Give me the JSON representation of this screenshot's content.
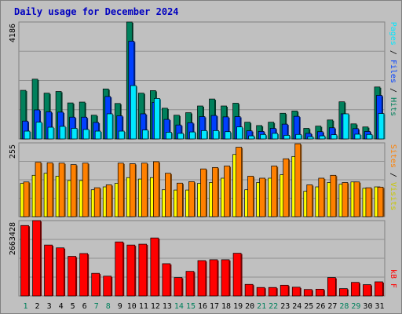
{
  "colors": {
    "pages": "#00e8ff",
    "files": "#0040ff",
    "hits": "#00805c",
    "visits": "#ffff00",
    "sites": "#ff8000",
    "kbytes": "#ff0000",
    "weekday_text": "#000000",
    "weekend_text": "#00805c",
    "title": "#0000c0"
  },
  "chart_data": [
    {
      "type": "bar",
      "title": "Daily usage for December 2024",
      "categories": [
        "1",
        "2",
        "3",
        "4",
        "5",
        "6",
        "7",
        "8",
        "9",
        "10",
        "11",
        "12",
        "13",
        "14",
        "15",
        "16",
        "17",
        "18",
        "19",
        "20",
        "21",
        "22",
        "23",
        "24",
        "25",
        "26",
        "27",
        "28",
        "29",
        "30",
        "31"
      ],
      "weekend_days": [
        "1",
        "7",
        "8",
        "14",
        "15",
        "21",
        "22",
        "28",
        "29"
      ],
      "ymax_label": "4186",
      "ylim": [
        0,
        4186
      ],
      "series": [
        {
          "name": "Hits",
          "values": [
            1740,
            2140,
            1640,
            1700,
            1290,
            1320,
            850,
            1790,
            1270,
            4186,
            1640,
            1730,
            1100,
            850,
            940,
            1180,
            1430,
            1180,
            1280,
            600,
            480,
            600,
            920,
            1000,
            380,
            460,
            680,
            1330,
            540,
            430,
            1860
          ]
        },
        {
          "name": "Files",
          "values": [
            640,
            1040,
            970,
            960,
            780,
            780,
            590,
            1520,
            830,
            3500,
            900,
            1310,
            700,
            500,
            580,
            800,
            840,
            790,
            800,
            290,
            270,
            380,
            530,
            810,
            200,
            260,
            400,
            900,
            370,
            270,
            1560
          ]
        },
        {
          "name": "Pages",
          "values": [
            280,
            600,
            420,
            450,
            380,
            340,
            280,
            900,
            280,
            1910,
            320,
            1450,
            240,
            200,
            250,
            300,
            300,
            260,
            430,
            110,
            160,
            200,
            130,
            160,
            80,
            110,
            150,
            900,
            170,
            160,
            910
          ]
        }
      ],
      "legend": [
        "Pages",
        "Files",
        "Hits"
      ]
    },
    {
      "type": "bar",
      "categories": [
        "1",
        "2",
        "3",
        "4",
        "5",
        "6",
        "7",
        "8",
        "9",
        "10",
        "11",
        "12",
        "13",
        "14",
        "15",
        "16",
        "17",
        "18",
        "19",
        "20",
        "21",
        "22",
        "23",
        "24",
        "25",
        "26",
        "27",
        "28",
        "29",
        "30",
        "31"
      ],
      "ymax_label": "255",
      "ylim": [
        0,
        255
      ],
      "series": [
        {
          "name": "Visits",
          "values": [
            115,
            143,
            150,
            140,
            125,
            125,
            93,
            103,
            115,
            135,
            130,
            135,
            93,
            92,
            92,
            115,
            118,
            133,
            215,
            93,
            118,
            133,
            145,
            208,
            88,
            103,
            118,
            112,
            120,
            98,
            103
          ]
        },
        {
          "name": "Sites",
          "values": [
            120,
            188,
            186,
            185,
            180,
            185,
            100,
            110,
            185,
            183,
            185,
            190,
            150,
            116,
            121,
            165,
            170,
            175,
            240,
            140,
            133,
            175,
            200,
            252,
            110,
            133,
            143,
            118,
            120,
            100,
            102
          ]
        }
      ],
      "legend": [
        "Sites",
        "Visits"
      ]
    },
    {
      "type": "bar",
      "categories": [
        "1",
        "2",
        "3",
        "4",
        "5",
        "6",
        "7",
        "8",
        "9",
        "10",
        "11",
        "12",
        "13",
        "14",
        "15",
        "16",
        "17",
        "18",
        "19",
        "20",
        "21",
        "22",
        "23",
        "24",
        "25",
        "26",
        "27",
        "28",
        "29",
        "30",
        "31"
      ],
      "ymax_label": "2663428",
      "ylim": [
        0,
        2663428
      ],
      "series": [
        {
          "name": "kB F",
          "values": [
            2490000,
            2663428,
            1800000,
            1700000,
            1400000,
            1500000,
            800000,
            700000,
            1910000,
            1800000,
            1830000,
            2050000,
            1140000,
            650000,
            870000,
            1250000,
            1280000,
            1280000,
            1510000,
            410000,
            300000,
            300000,
            380000,
            310000,
            230000,
            240000,
            650000,
            260000,
            480000,
            400000,
            500000
          ]
        }
      ],
      "legend": [
        "kB F"
      ]
    }
  ]
}
